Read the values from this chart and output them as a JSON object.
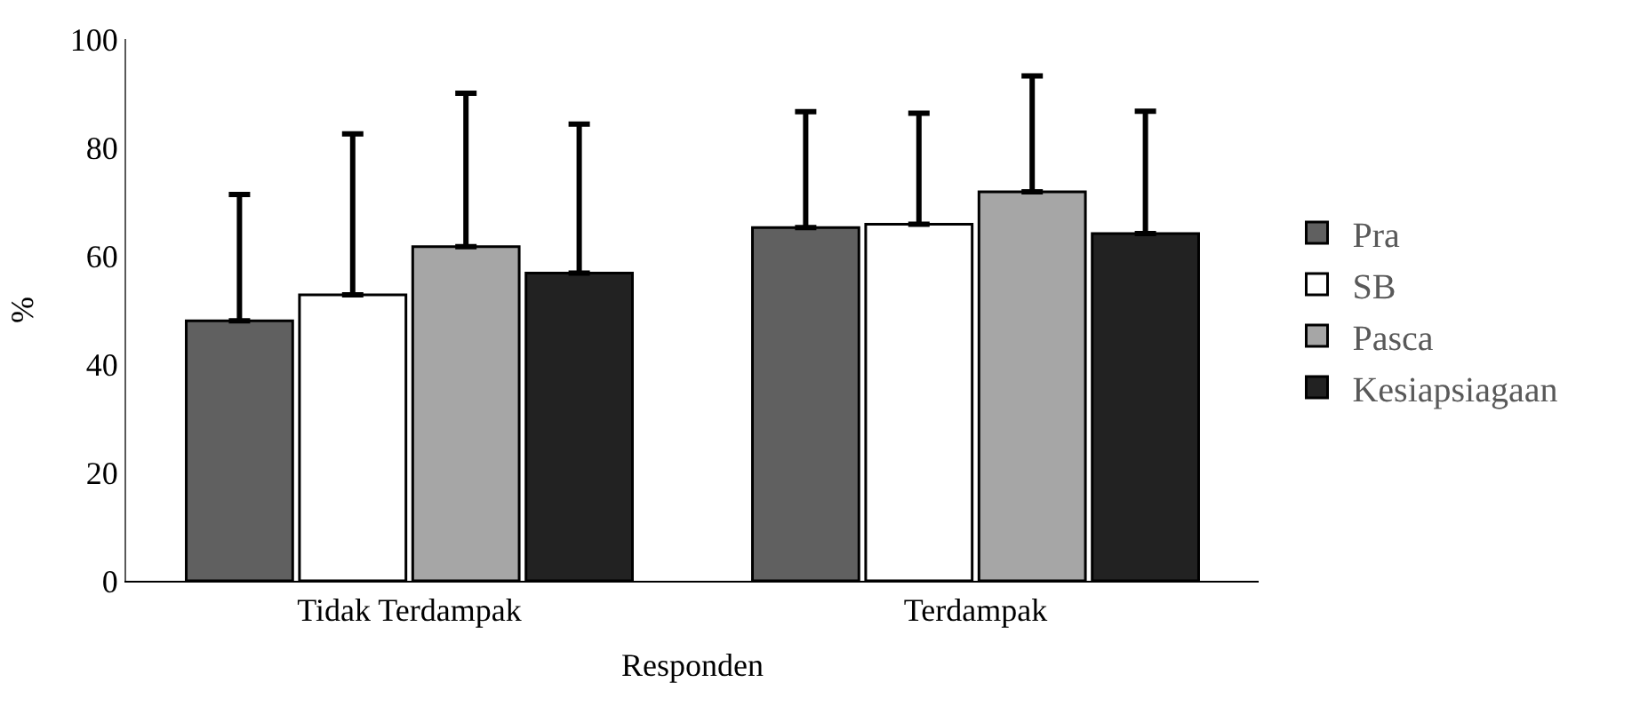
{
  "chart_data": {
    "type": "bar",
    "xlabel": "Responden",
    "ylabel": "%",
    "categories": [
      "Tidak Terdampak",
      "Terdampak"
    ],
    "series": [
      {
        "name": "Pra",
        "color": "#606060",
        "values": [
          48,
          65.2
        ],
        "errors": [
          [
            48,
            71.3
          ],
          [
            65.2,
            86.6
          ]
        ]
      },
      {
        "name": "SB",
        "color": "#ffffff",
        "values": [
          52.8,
          65.8
        ],
        "errors": [
          [
            52.8,
            82.5
          ],
          [
            65.8,
            86.3
          ]
        ]
      },
      {
        "name": "Pasca",
        "color": "#a6a6a6",
        "values": [
          61.7,
          71.8
        ],
        "errors": [
          [
            61.7,
            90
          ],
          [
            71.8,
            93.2
          ]
        ]
      },
      {
        "name": "Kesiapsiagaan",
        "color": "#222222",
        "values": [
          56.8,
          64.1
        ],
        "errors": [
          [
            56.8,
            84.3
          ],
          [
            64.1,
            86.7
          ]
        ]
      }
    ],
    "ylim": [
      0,
      100
    ],
    "yticks": [
      0,
      20,
      40,
      60,
      80,
      100
    ],
    "grid": false,
    "legend": "right"
  }
}
